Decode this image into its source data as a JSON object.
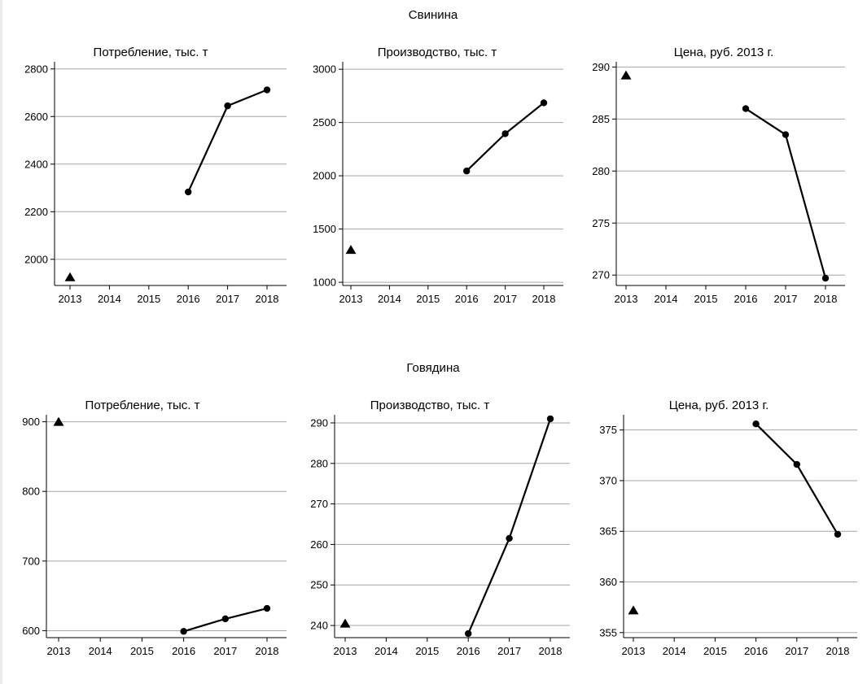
{
  "groups": [
    {
      "title": "Свинина"
    },
    {
      "title": "Говядина"
    }
  ],
  "chart_data": [
    {
      "type": "line",
      "group": "Свинина",
      "title": "Потребление, тыс. т",
      "x_ticks": [
        2013,
        2014,
        2015,
        2016,
        2017,
        2018
      ],
      "y_ticks": [
        2000,
        2200,
        2400,
        2600,
        2800
      ],
      "ylim": [
        1890,
        2830
      ],
      "grid": "horizontal",
      "series": [
        {
          "marker": "triangle",
          "x": [
            2013
          ],
          "y": [
            1925
          ]
        },
        {
          "marker": "circle",
          "x": [
            2016,
            2017,
            2018
          ],
          "y": [
            2283,
            2645,
            2712
          ]
        }
      ]
    },
    {
      "type": "line",
      "group": "Свинина",
      "title": "Производство, тыс. т",
      "x_ticks": [
        2013,
        2014,
        2015,
        2016,
        2017,
        2018
      ],
      "y_ticks": [
        1000,
        1500,
        2000,
        2500,
        3000
      ],
      "ylim": [
        970,
        3070
      ],
      "grid": "horizontal",
      "series": [
        {
          "marker": "triangle",
          "x": [
            2013
          ],
          "y": [
            1305
          ]
        },
        {
          "marker": "circle",
          "x": [
            2016,
            2017,
            2018
          ],
          "y": [
            2045,
            2395,
            2685
          ]
        }
      ]
    },
    {
      "type": "line",
      "group": "Свинина",
      "title": "Цена, руб. 2013 г.",
      "x_ticks": [
        2013,
        2014,
        2015,
        2016,
        2017,
        2018
      ],
      "y_ticks": [
        270,
        275,
        280,
        285,
        290
      ],
      "ylim": [
        269,
        290.5
      ],
      "grid": "horizontal",
      "series": [
        {
          "marker": "triangle",
          "x": [
            2013
          ],
          "y": [
            289.2
          ]
        },
        {
          "marker": "circle",
          "x": [
            2016,
            2017,
            2018
          ],
          "y": [
            286.0,
            283.5,
            269.7
          ]
        }
      ]
    },
    {
      "type": "line",
      "group": "Говядина",
      "title": "Потребление, тыс. т",
      "x_ticks": [
        2013,
        2014,
        2015,
        2016,
        2017,
        2018
      ],
      "y_ticks": [
        600,
        700,
        800,
        900
      ],
      "ylim": [
        590,
        910
      ],
      "grid": "horizontal",
      "series": [
        {
          "marker": "triangle",
          "x": [
            2013
          ],
          "y": [
            900
          ]
        },
        {
          "marker": "circle",
          "x": [
            2016,
            2017,
            2018
          ],
          "y": [
            599,
            617,
            632
          ]
        }
      ]
    },
    {
      "type": "line",
      "group": "Говядина",
      "title": "Производство, тыс. т",
      "x_ticks": [
        2013,
        2014,
        2015,
        2016,
        2017,
        2018
      ],
      "y_ticks": [
        240,
        250,
        260,
        270,
        280,
        290
      ],
      "ylim": [
        237,
        292
      ],
      "grid": "horizontal",
      "series": [
        {
          "marker": "triangle",
          "x": [
            2013
          ],
          "y": [
            240.5
          ]
        },
        {
          "marker": "circle",
          "x": [
            2016,
            2017,
            2018
          ],
          "y": [
            238,
            261.5,
            291
          ]
        }
      ]
    },
    {
      "type": "line",
      "group": "Говядина",
      "title": "Цена, руб. 2013 г.",
      "x_ticks": [
        2013,
        2014,
        2015,
        2016,
        2017,
        2018
      ],
      "y_ticks": [
        355,
        360,
        365,
        370,
        375
      ],
      "ylim": [
        354.5,
        376.5
      ],
      "grid": "horizontal",
      "series": [
        {
          "marker": "triangle",
          "x": [
            2013
          ],
          "y": [
            357.2
          ]
        },
        {
          "marker": "circle",
          "x": [
            2016,
            2017,
            2018
          ],
          "y": [
            375.6,
            371.6,
            364.7
          ]
        }
      ]
    }
  ]
}
